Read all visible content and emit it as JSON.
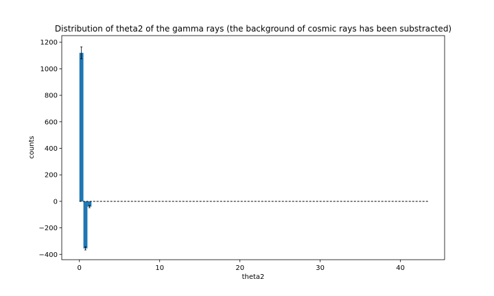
{
  "chart_data": {
    "type": "bar",
    "title": "Distribution of theta2 of the gamma rays (the background of cosmic rays has been substracted)",
    "xlabel": "theta2",
    "ylabel": "counts",
    "xlim": [
      -2.2,
      45.5
    ],
    "ylim": [
      -440,
      1250
    ],
    "xticks": [
      0,
      10,
      20,
      30,
      40
    ],
    "yticks": [
      -400,
      -200,
      0,
      200,
      400,
      600,
      800,
      1000,
      1200
    ],
    "bar_width": 0.5,
    "bars": [
      {
        "x": 0.25,
        "value": 1120,
        "error": 45
      },
      {
        "x": 0.75,
        "value": -355,
        "error": 12
      },
      {
        "x": 1.25,
        "value": -40,
        "error": 8
      }
    ],
    "reference_line": {
      "y": 0,
      "x_range": [
        0,
        43.5
      ],
      "style": "dashed"
    },
    "colors": {
      "bar": "#1f77b4",
      "error": "#000000",
      "reference_line": "#000000"
    },
    "grid": false
  }
}
